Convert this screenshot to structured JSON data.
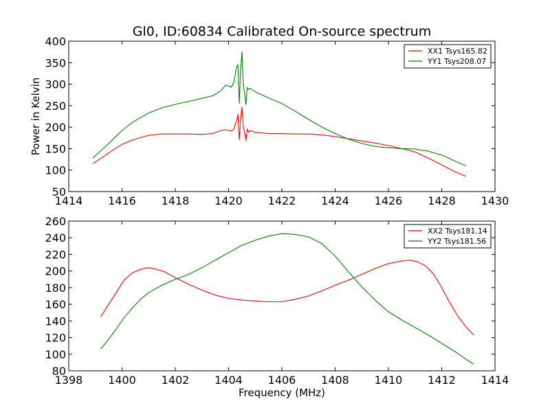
{
  "title": "Gl0, ID:60834 Calibrated On-source spectrum",
  "colors": {
    "red": "#ff0000",
    "green": "#008000"
  },
  "chart_data": [
    {
      "type": "line",
      "xlabel": "",
      "ylabel": "Power in Kelvin",
      "xlim": [
        1414,
        1430
      ],
      "ylim": [
        50,
        400
      ],
      "xticks": [
        "1414",
        "1416",
        "1418",
        "1420",
        "1422",
        "1424",
        "1426",
        "1428",
        "1430"
      ],
      "yticks": [
        "50",
        "100",
        "150",
        "200",
        "250",
        "300",
        "350",
        "400"
      ],
      "legend_position": "top-right",
      "series": [
        {
          "name": "XX1 Tsys165.82",
          "color": "#ff0000",
          "x": [
            1414.9,
            1415.2,
            1415.5,
            1415.8,
            1416.0,
            1416.3,
            1416.6,
            1417.0,
            1417.5,
            1418.0,
            1418.5,
            1419.0,
            1419.4,
            1419.7,
            1419.9,
            1420.1,
            1420.2,
            1420.3,
            1420.35,
            1420.4,
            1420.45,
            1420.5,
            1420.55,
            1420.6,
            1420.65,
            1420.7,
            1420.75,
            1420.8,
            1421.0,
            1421.5,
            1422.0,
            1422.5,
            1423.0,
            1423.5,
            1424.0,
            1424.5,
            1425.0,
            1425.5,
            1426.0,
            1426.5,
            1427.0,
            1427.5,
            1428.0,
            1428.5,
            1428.9
          ],
          "y": [
            115,
            127,
            140,
            152,
            160,
            168,
            174,
            181,
            184,
            184,
            184,
            183,
            185,
            192,
            194,
            191,
            196,
            215,
            230,
            170,
            218,
            247,
            200,
            190,
            168,
            195,
            188,
            192,
            188,
            185,
            185,
            184,
            184,
            182,
            178,
            173,
            168,
            163,
            157,
            150,
            142,
            128,
            112,
            96,
            86
          ]
        },
        {
          "name": "YY1 Tsys208.07",
          "color": "#008000",
          "x": [
            1414.9,
            1415.2,
            1415.5,
            1415.8,
            1416.0,
            1416.3,
            1416.6,
            1417.0,
            1417.5,
            1418.0,
            1418.5,
            1419.0,
            1419.4,
            1419.7,
            1419.9,
            1420.1,
            1420.2,
            1420.3,
            1420.35,
            1420.4,
            1420.45,
            1420.5,
            1420.55,
            1420.6,
            1420.65,
            1420.7,
            1420.75,
            1420.8,
            1421.0,
            1421.5,
            1422.0,
            1422.5,
            1423.0,
            1423.5,
            1424.0,
            1424.5,
            1425.0,
            1425.5,
            1426.0,
            1426.5,
            1427.0,
            1427.5,
            1428.0,
            1428.5,
            1428.9
          ],
          "y": [
            128,
            145,
            162,
            180,
            192,
            207,
            219,
            233,
            245,
            253,
            260,
            267,
            273,
            284,
            298,
            293,
            305,
            340,
            345,
            255,
            330,
            376,
            300,
            280,
            252,
            292,
            288,
            290,
            282,
            268,
            255,
            237,
            218,
            200,
            185,
            172,
            162,
            155,
            152,
            150,
            149,
            144,
            135,
            121,
            110
          ]
        }
      ]
    },
    {
      "type": "line",
      "xlabel": "Frequency (MHz)",
      "ylabel": "",
      "xlim": [
        1398,
        1414
      ],
      "ylim": [
        80,
        260
      ],
      "xticks": [
        "1398",
        "1400",
        "1402",
        "1404",
        "1406",
        "1408",
        "1410",
        "1412",
        "1414"
      ],
      "yticks": [
        "80",
        "100",
        "120",
        "140",
        "160",
        "180",
        "200",
        "220",
        "240",
        "260"
      ],
      "legend_position": "top-right",
      "series": [
        {
          "name": "XX2 Tsys181.14",
          "color": "#ff0000",
          "x": [
            1399.2,
            1399.5,
            1399.8,
            1400.1,
            1400.4,
            1400.7,
            1401.0,
            1401.3,
            1401.6,
            1402.0,
            1402.5,
            1403.0,
            1403.5,
            1404.0,
            1404.5,
            1405.0,
            1405.5,
            1406.0,
            1406.5,
            1407.0,
            1407.5,
            1408.0,
            1408.5,
            1409.0,
            1409.5,
            1410.0,
            1410.5,
            1410.8,
            1411.1,
            1411.4,
            1411.7,
            1412.0,
            1412.3,
            1412.6,
            1412.9,
            1413.2
          ],
          "y": [
            145,
            160,
            175,
            190,
            198,
            202,
            204,
            202,
            199,
            192,
            184,
            177,
            171,
            167,
            165,
            164,
            163,
            163,
            166,
            170,
            176,
            183,
            189,
            196,
            203,
            209,
            212,
            213,
            211,
            206,
            196,
            180,
            162,
            146,
            133,
            123
          ]
        },
        {
          "name": "YY2 Tsys181.56",
          "color": "#008000",
          "x": [
            1399.2,
            1399.5,
            1399.8,
            1400.1,
            1400.4,
            1400.7,
            1401.0,
            1401.5,
            1402.0,
            1402.5,
            1403.0,
            1403.5,
            1404.0,
            1404.5,
            1405.0,
            1405.5,
            1406.0,
            1406.5,
            1407.0,
            1407.5,
            1408.0,
            1408.5,
            1409.0,
            1409.5,
            1410.0,
            1410.5,
            1411.0,
            1411.5,
            1412.0,
            1412.5,
            1413.0,
            1413.2
          ],
          "y": [
            106,
            118,
            131,
            145,
            156,
            166,
            174,
            183,
            190,
            196,
            204,
            213,
            222,
            231,
            237,
            242,
            245,
            244,
            241,
            233,
            218,
            199,
            181,
            165,
            151,
            141,
            132,
            123,
            113,
            103,
            92,
            88
          ]
        }
      ]
    }
  ]
}
